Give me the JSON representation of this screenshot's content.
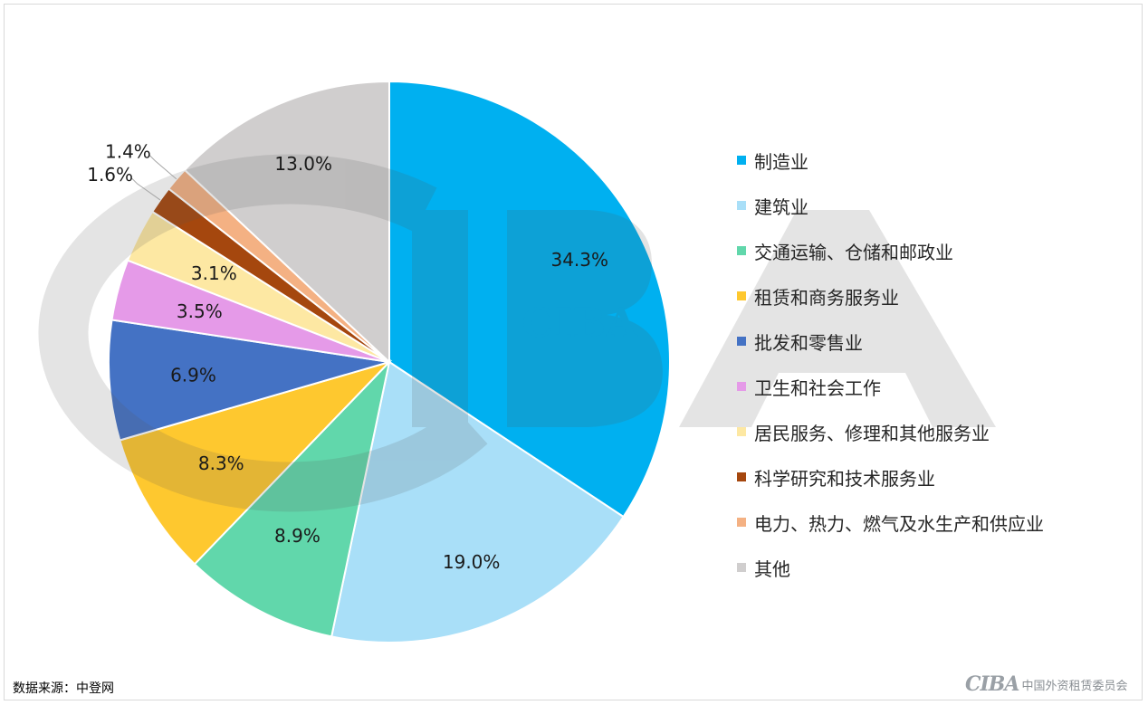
{
  "chart_data": {
    "type": "pie",
    "title": "",
    "categories": [
      "制造业",
      "建筑业",
      "交通运输、仓储和邮政业",
      "租赁和商务服务业",
      "批发和零售业",
      "卫生和社会工作",
      "居民服务、修理和其他服务业",
      "科学研究和技术服务业",
      "电力、热力、燃气及水生产和供应业",
      "其他"
    ],
    "values": [
      34.3,
      19.0,
      8.9,
      8.3,
      6.9,
      3.5,
      3.1,
      1.6,
      1.4,
      13.0
    ],
    "labels": [
      "34.3%",
      "19.0%",
      "8.9%",
      "8.3%",
      "6.9%",
      "3.5%",
      "3.1%",
      "1.6%",
      "1.4%",
      "13.0%"
    ],
    "colors": [
      "#00b0f0",
      "#a9dff8",
      "#61d7ab",
      "#fec82f",
      "#4472c4",
      "#e59ae8",
      "#fde8a3",
      "#a5470e",
      "#f4b183",
      "#d0cece"
    ],
    "legend_position": "right",
    "start_angle": "top, clockwise"
  },
  "source": "数据来源：中登网",
  "footer": {
    "logo_mark": "CIBA",
    "org_name": "中国外资租赁委员会"
  },
  "watermark": "CIBA"
}
